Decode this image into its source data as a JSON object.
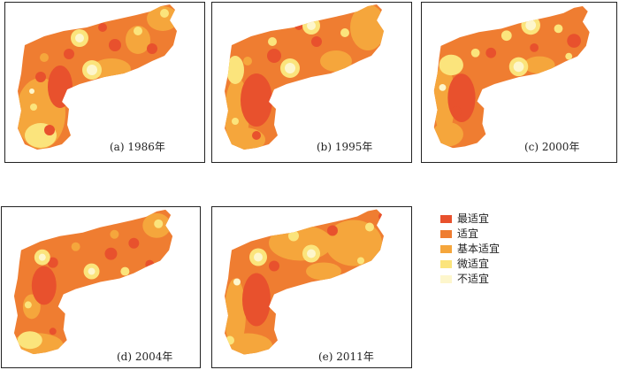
{
  "panels": [
    {
      "id": "a",
      "caption": "(a)  1986年"
    },
    {
      "id": "b",
      "caption": "(b)  1995年"
    },
    {
      "id": "c",
      "caption": "(c)  2000年"
    },
    {
      "id": "d",
      "caption": "(d)  2004年"
    },
    {
      "id": "e",
      "caption": "(e)  2011年"
    }
  ],
  "legend": {
    "items": [
      {
        "label": "最适宜",
        "color": "#e8512d"
      },
      {
        "label": "适宜",
        "color": "#ef7d31"
      },
      {
        "label": "基本适宜",
        "color": "#f5a63c"
      },
      {
        "label": "微适宜",
        "color": "#fbe47c"
      },
      {
        "label": "不适宜",
        "color": "#fdf6cc"
      }
    ]
  }
}
